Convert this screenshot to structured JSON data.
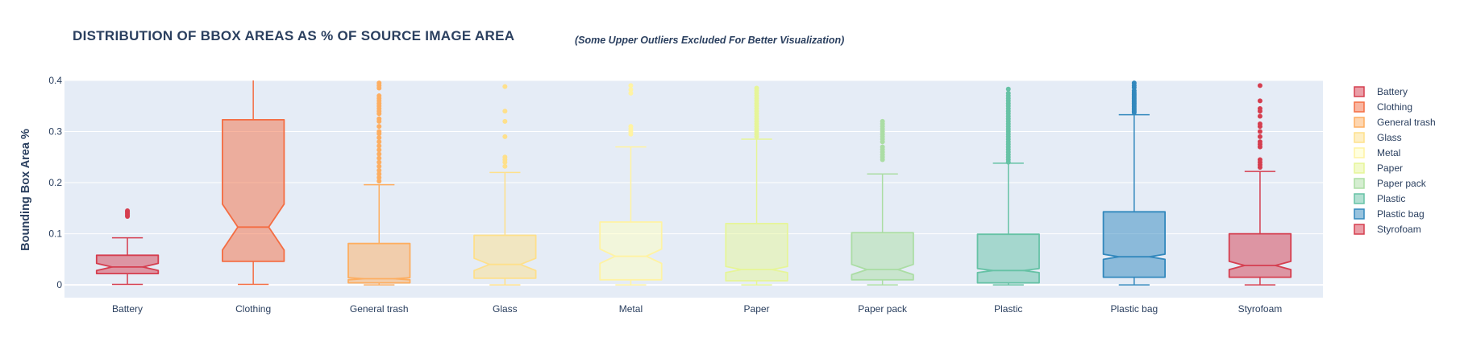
{
  "chart_data": {
    "type": "box",
    "title": "DISTRIBUTION OF BBOX AREAS AS % OF SOURCE IMAGE AREA",
    "subtitle": "(Some Upper Outliers Excluded For Better Visualization)",
    "xlabel": "",
    "ylabel": "Bounding Box Area %",
    "ylim": [
      -0.025,
      0.4
    ],
    "yticks": [
      0,
      0.1,
      0.2,
      0.3,
      0.4
    ],
    "ytick_labels": [
      "0",
      "0.1",
      "0.2",
      "0.3",
      "0.4"
    ],
    "grid": true,
    "legend_position": "right",
    "categories": [
      "Battery",
      "Clothing",
      "General trash",
      "Glass",
      "Metal",
      "Paper",
      "Paper pack",
      "Plastic",
      "Plastic bag",
      "Styrofoam"
    ],
    "series": [
      {
        "name": "Battery",
        "color": "#d53e4f",
        "min": 0.001,
        "q1": 0.022,
        "median": 0.035,
        "q3": 0.058,
        "notch_low": 0.028,
        "notch_high": 0.042,
        "max": 0.092,
        "outliers": [
          0.134,
          0.137,
          0.14,
          0.143,
          0.145
        ]
      },
      {
        "name": "Clothing",
        "color": "#f46d43",
        "min": 0.001,
        "q1": 0.046,
        "median": 0.113,
        "q3": 0.323,
        "notch_low": 0.068,
        "notch_high": 0.158,
        "max": 0.4,
        "outliers": []
      },
      {
        "name": "General trash",
        "color": "#fdae61",
        "min": 0.0,
        "q1": 0.004,
        "median": 0.012,
        "q3": 0.081,
        "notch_low": 0.01,
        "notch_high": 0.014,
        "max": 0.196,
        "outliers": [
          0.203,
          0.21,
          0.217,
          0.224,
          0.232,
          0.24,
          0.248,
          0.256,
          0.264,
          0.272,
          0.28,
          0.288,
          0.296,
          0.3,
          0.31,
          0.32,
          0.325,
          0.335,
          0.34,
          0.345,
          0.35,
          0.355,
          0.36,
          0.365,
          0.37,
          0.385,
          0.39,
          0.395
        ]
      },
      {
        "name": "Glass",
        "color": "#fee08b",
        "min": 0.0,
        "q1": 0.013,
        "median": 0.04,
        "q3": 0.097,
        "notch_low": 0.028,
        "notch_high": 0.052,
        "max": 0.22,
        "outliers": [
          0.232,
          0.24,
          0.245,
          0.25,
          0.29,
          0.32,
          0.34,
          0.388
        ]
      },
      {
        "name": "Metal",
        "color": "#ffffbf",
        "min": 0.0,
        "q1": 0.01,
        "median": 0.056,
        "q3": 0.123,
        "notch_low": 0.042,
        "notch_high": 0.07,
        "max": 0.27,
        "outliers": [
          0.295,
          0.3,
          0.305,
          0.31,
          0.375,
          0.382,
          0.39
        ]
      },
      {
        "name": "Paper",
        "color": "#e6f598",
        "min": 0.0,
        "q1": 0.008,
        "median": 0.03,
        "q3": 0.12,
        "notch_low": 0.024,
        "notch_high": 0.036,
        "max": 0.285,
        "outliers": [
          0.29,
          0.295,
          0.3,
          0.305,
          0.31,
          0.315,
          0.32,
          0.325,
          0.33,
          0.335,
          0.34,
          0.345,
          0.35,
          0.355,
          0.36,
          0.365,
          0.37,
          0.375,
          0.38,
          0.385
        ]
      },
      {
        "name": "Paper pack",
        "color": "#abdda4",
        "min": 0.0,
        "q1": 0.01,
        "median": 0.03,
        "q3": 0.102,
        "notch_low": 0.02,
        "notch_high": 0.04,
        "max": 0.217,
        "outliers": [
          0.245,
          0.25,
          0.255,
          0.26,
          0.265,
          0.27,
          0.28,
          0.285,
          0.29,
          0.295,
          0.3,
          0.305,
          0.31,
          0.315,
          0.32
        ]
      },
      {
        "name": "Plastic",
        "color": "#66c2a5",
        "min": 0.0,
        "q1": 0.004,
        "median": 0.028,
        "q3": 0.099,
        "notch_low": 0.024,
        "notch_high": 0.032,
        "max": 0.238,
        "outliers": [
          0.24,
          0.245,
          0.25,
          0.255,
          0.26,
          0.265,
          0.27,
          0.275,
          0.28,
          0.285,
          0.29,
          0.295,
          0.3,
          0.305,
          0.31,
          0.315,
          0.32,
          0.325,
          0.33,
          0.335,
          0.34,
          0.345,
          0.35,
          0.355,
          0.36,
          0.365,
          0.37,
          0.375,
          0.383
        ]
      },
      {
        "name": "Plastic bag",
        "color": "#3288bd",
        "min": 0.0,
        "q1": 0.015,
        "median": 0.055,
        "q3": 0.143,
        "notch_low": 0.05,
        "notch_high": 0.06,
        "max": 0.333,
        "outliers": [
          0.337,
          0.34,
          0.343,
          0.346,
          0.349,
          0.352,
          0.355,
          0.358,
          0.361,
          0.364,
          0.367,
          0.37,
          0.373,
          0.376,
          0.38,
          0.386,
          0.39,
          0.395
        ]
      },
      {
        "name": "Styrofoam",
        "color": "#d53e4f",
        "min": 0.0,
        "q1": 0.015,
        "median": 0.038,
        "q3": 0.1,
        "notch_low": 0.03,
        "notch_high": 0.046,
        "max": 0.222,
        "outliers": [
          0.23,
          0.235,
          0.24,
          0.245,
          0.27,
          0.275,
          0.28,
          0.29,
          0.3,
          0.31,
          0.315,
          0.33,
          0.34,
          0.345,
          0.36,
          0.39
        ]
      }
    ]
  }
}
